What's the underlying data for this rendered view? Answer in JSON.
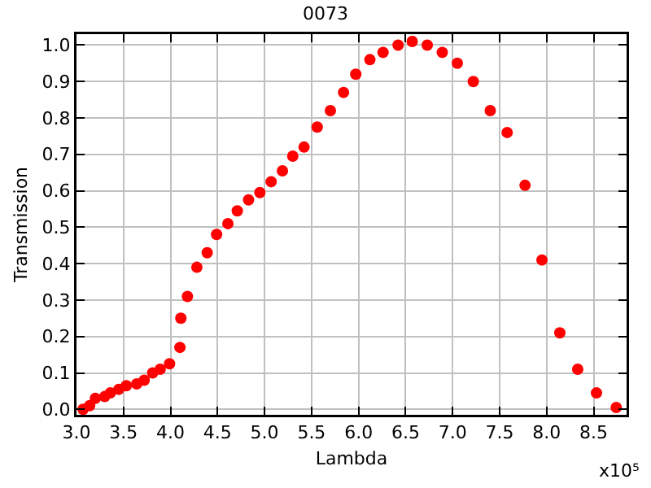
{
  "chart_data": {
    "type": "scatter",
    "title": "0073",
    "xlabel": "Lambda",
    "ylabel": "Transmission",
    "annotations": [
      "x10⁵"
    ],
    "x": [
      3.07,
      3.14,
      3.2,
      3.3,
      3.36,
      3.45,
      3.53,
      3.64,
      3.72,
      3.81,
      3.89,
      3.99,
      4.1,
      4.11,
      4.18,
      4.28,
      4.39,
      4.49,
      4.61,
      4.71,
      4.83,
      4.95,
      5.07,
      5.19,
      5.3,
      5.42,
      5.56,
      5.7,
      5.84,
      5.97,
      6.12,
      6.26,
      6.42,
      6.57,
      6.73,
      6.89,
      7.05,
      7.22,
      7.4,
      7.58,
      7.77,
      7.95,
      8.14,
      8.33,
      8.53,
      8.74
    ],
    "series": [
      {
        "color": "#ff0000",
        "values": [
          0.0,
          0.01,
          0.03,
          0.035,
          0.045,
          0.055,
          0.065,
          0.07,
          0.08,
          0.1,
          0.11,
          0.125,
          0.17,
          0.25,
          0.31,
          0.39,
          0.43,
          0.48,
          0.51,
          0.545,
          0.575,
          0.595,
          0.625,
          0.655,
          0.695,
          0.72,
          0.775,
          0.82,
          0.87,
          0.92,
          0.96,
          0.98,
          1.0,
          1.01,
          1.0,
          0.98,
          0.95,
          0.9,
          0.82,
          0.76,
          0.615,
          0.41,
          0.21,
          0.11,
          0.045,
          0.005
        ]
      }
    ],
    "marker": "circle",
    "grid": true,
    "xlim": [
      3.0,
      8.85
    ],
    "xticks": [
      {
        "value": 3.0,
        "label": "3.0"
      },
      3.5,
      {
        "value": 4.0,
        "label": "4.0"
      },
      4.5,
      {
        "value": 5.0,
        "label": "5.0"
      },
      5.5,
      {
        "value": 6.0,
        "label": "6.0"
      },
      6.5,
      {
        "value": 7.0,
        "label": "7.0"
      },
      7.5,
      {
        "value": 8.0,
        "label": "8.0"
      },
      8.5
    ],
    "ylim": [
      -0.015,
      1.03
    ],
    "yticks": [
      {
        "value": 0,
        "label": "0.0"
      },
      0.1,
      0.2,
      0.3,
      0.4,
      0.5,
      0.6,
      0.7,
      0.8,
      0.9,
      {
        "value": 1,
        "label": "1.0"
      }
    ]
  }
}
